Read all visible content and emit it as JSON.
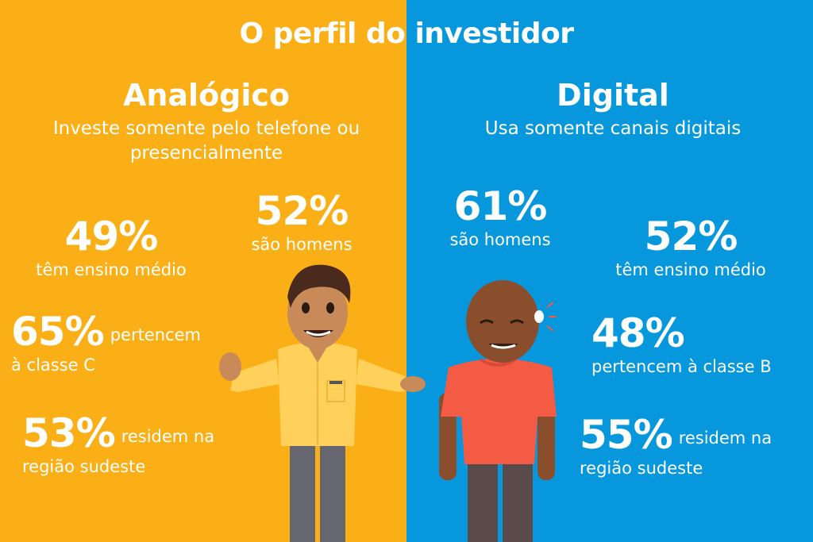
{
  "title": "O perfil do investidor",
  "colors": {
    "left_bg": "#fbaf17",
    "right_bg": "#0797dc",
    "text": "#ffffff"
  },
  "left": {
    "heading": "Analógico",
    "subtitle_line1": "Investe somente pelo telefone ou",
    "subtitle_line2": "presencialmente",
    "stats": {
      "men": {
        "value": "52%",
        "label": "são homens"
      },
      "education": {
        "value": "49%",
        "label": "têm ensino médio"
      },
      "class": {
        "value": "65%",
        "label_a": "pertencem",
        "label_b": "à classe C"
      },
      "region": {
        "value": "53%",
        "label_a": "residem na",
        "label_b": "região sudeste"
      }
    }
  },
  "right": {
    "heading": "Digital",
    "subtitle_line1": "Usa somente canais digitais",
    "stats": {
      "men": {
        "value": "61%",
        "label": "são homens"
      },
      "education": {
        "value": "52%",
        "label": "têm ensino médio"
      },
      "class": {
        "value": "48%",
        "label": "pertencem à classe B"
      },
      "region": {
        "value": "55%",
        "label_a": "residem na",
        "label_b": "região sudeste"
      }
    }
  },
  "illustrations": {
    "left_person": "analog-investor-illustration",
    "right_person": "digital-investor-illustration"
  }
}
